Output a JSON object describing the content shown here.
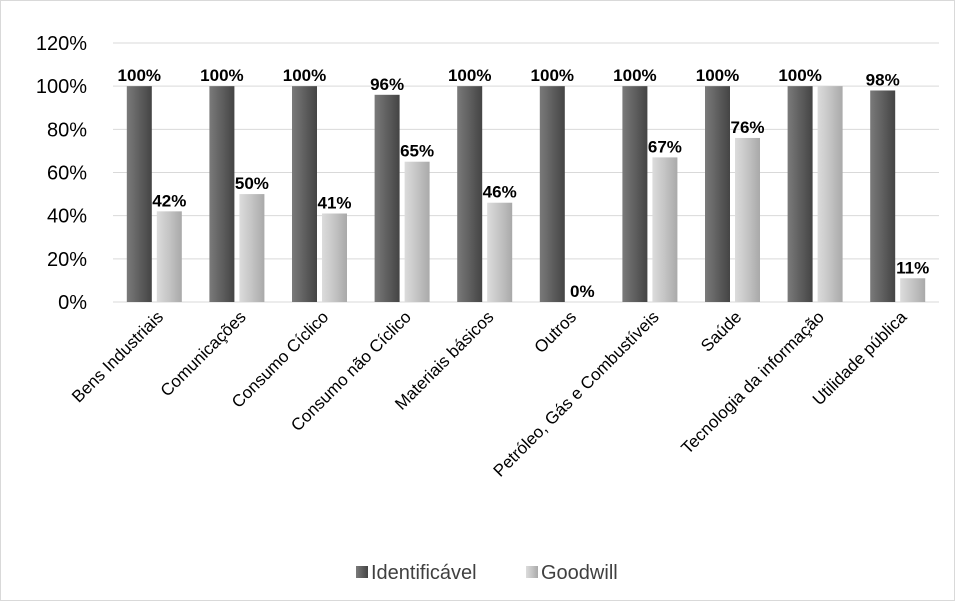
{
  "chart_data": {
    "type": "bar",
    "title": "",
    "xlabel": "",
    "ylabel": "",
    "ylim": [
      0,
      1.2
    ],
    "yticks": [
      0,
      0.2,
      0.4,
      0.6,
      0.8,
      1.0,
      1.2
    ],
    "ytick_labels": [
      "0%",
      "20%",
      "40%",
      "60%",
      "80%",
      "100%",
      "120%"
    ],
    "grid": true,
    "legend_position": "bottom",
    "categories": [
      "Bens Industriais",
      "Comunicações",
      "Consumo Cíclico",
      "Consumo não Cíclico",
      "Materiais básicos",
      "Outros",
      "Petróleo, Gás e Combustíveis",
      "Saúde",
      "Tecnologia da informação",
      "Utilidade pública"
    ],
    "series": [
      {
        "name": "Identificável",
        "color": "#595959",
        "values": [
          1.0,
          1.0,
          1.0,
          0.96,
          1.0,
          1.0,
          1.0,
          1.0,
          1.0,
          0.98
        ],
        "labels": [
          "100%",
          "100%",
          "100%",
          "96%",
          "100%",
          "100%",
          "100%",
          "100%",
          "100%",
          "98%"
        ]
      },
      {
        "name": "Goodwill",
        "color": "#bfbfbf",
        "values": [
          0.42,
          0.5,
          0.41,
          0.65,
          0.46,
          0.0,
          0.67,
          0.76,
          1.0,
          0.11
        ],
        "labels": [
          "42%",
          "50%",
          "41%",
          "65%",
          "46%",
          "0%",
          "67%",
          "76%",
          "",
          "11%"
        ]
      }
    ]
  }
}
